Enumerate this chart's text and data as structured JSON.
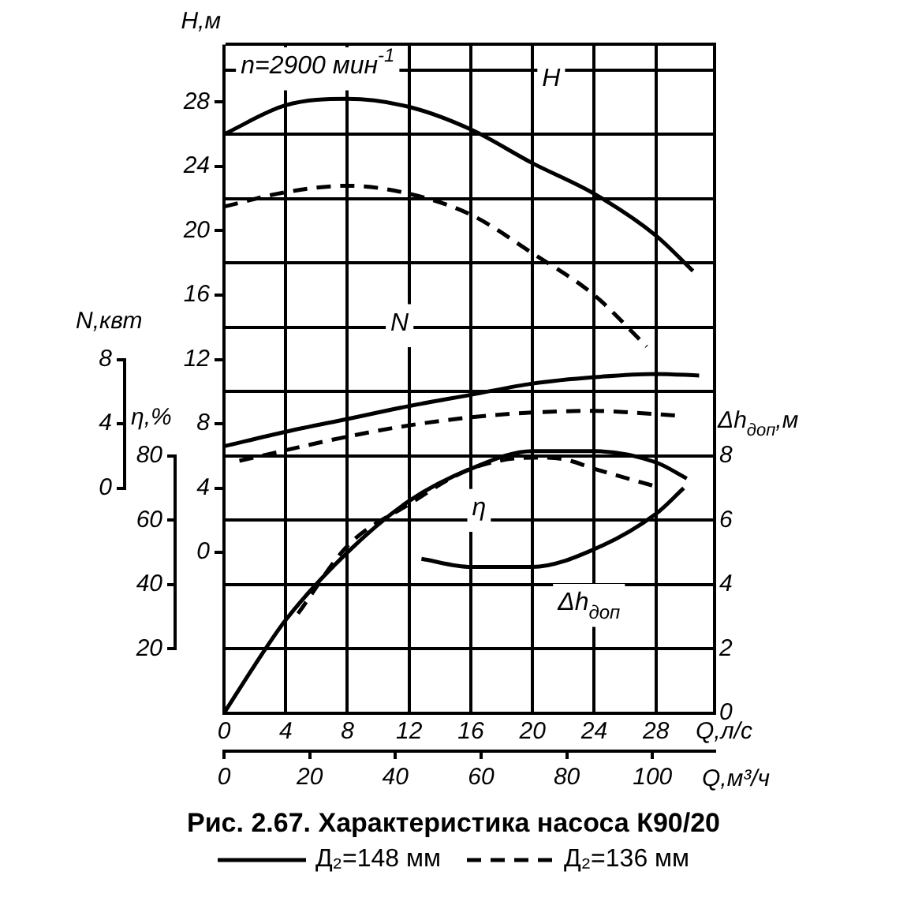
{
  "chart_data": [
    {
      "type": "line",
      "xlim": [
        0,
        31.8
      ],
      "ylabel": "H,м",
      "y2label": "N,квт",
      "ylim": [
        -10,
        31.6
      ],
      "yticks": [
        0,
        4,
        8,
        12,
        16,
        20,
        24,
        28
      ],
      "y2lim": [
        -14,
        27.6
      ],
      "y2ticks": [
        0,
        4,
        8
      ],
      "tick_labels": "y",
      "legend": "bottom",
      "marker": "none",
      "series": [
        {
          "name": "Д₂=148 мм",
          "color": "#000000",
          "line_style": "solid",
          "x": [
            0,
            4,
            8,
            12,
            16,
            20,
            24,
            28,
            30.4
          ],
          "values": [
            26,
            27.8,
            28.2,
            27.7,
            26.3,
            24.2,
            22.3,
            19.7,
            17.5
          ]
        },
        {
          "name": "Д₂=136 мм",
          "color": "#000000",
          "line_style": "dashed",
          "x": [
            0,
            4,
            8,
            12,
            16,
            20,
            24,
            27.4
          ],
          "values": [
            21.5,
            22.4,
            22.8,
            22.3,
            21,
            18.6,
            16,
            12.8
          ]
        },
        {
          "color": "#000000",
          "line_style": "solid",
          "axis": "y2",
          "x": [
            0,
            4,
            8,
            12,
            16,
            20,
            24,
            28,
            30.8
          ],
          "values": [
            2.6,
            3.5,
            4.3,
            5.1,
            5.8,
            6.5,
            6.9,
            7.1,
            7
          ]
        },
        {
          "color": "#000000",
          "line_style": "dashed",
          "axis": "y2",
          "x": [
            1,
            8,
            12,
            16,
            20,
            24,
            28,
            29.5
          ],
          "values": [
            1.7,
            3.2,
            3.9,
            4.4,
            4.7,
            4.8,
            4.6,
            4.5
          ]
        }
      ],
      "annotations": [
        "n=2900 мин$^{-1}$",
        "H",
        "N"
      ]
    },
    {
      "type": "line",
      "title": "Рис. 2.67. Характеристика насоса К90/20",
      "xlabel": "Q,л/с",
      "x2label": "Q,м³/ч",
      "ylabel": "η,%",
      "y2label": "Δh$_{доп}$,м",
      "xlim": [
        0,
        31.8
      ],
      "xticks": [
        0,
        4,
        8,
        12,
        16,
        20,
        24,
        28
      ],
      "x2lim": [
        0,
        114.5
      ],
      "x2ticks": [
        0,
        20,
        40,
        60,
        80,
        100
      ],
      "ylim": [
        0,
        208
      ],
      "yticks": [
        20,
        40,
        60,
        80
      ],
      "y2lim": [
        0,
        20.8
      ],
      "y2ticks": [
        0,
        2,
        4,
        6,
        8,
        {
          "value": 10,
          "label": null
        },
        {
          "value": 12,
          "label": null
        },
        {
          "value": 14,
          "label": null
        },
        {
          "value": 16,
          "label": null
        },
        {
          "value": 18,
          "label": null
        },
        {
          "value": 20,
          "label": null
        }
      ],
      "grid": true,
      "marker": "none",
      "series": [
        {
          "color": "#000000",
          "line_style": "solid",
          "x": [
            0,
            2,
            4,
            8,
            12,
            16,
            20,
            24,
            28,
            30
          ],
          "values": [
            0,
            15,
            29,
            50,
            66,
            76,
            81.5,
            81.5,
            78,
            73
          ]
        },
        {
          "color": "#000000",
          "line_style": "dashed",
          "x": [
            4.8,
            8,
            12,
            16,
            20,
            22,
            24,
            28
          ],
          "values": [
            31,
            52,
            65,
            76,
            79.5,
            79,
            76,
            70.5
          ]
        },
        {
          "color": "#000000",
          "line_style": "solid",
          "axis": "y2",
          "x": [
            12.8,
            16,
            20,
            24,
            28,
            29.8
          ],
          "values": [
            4.8,
            4.55,
            4.55,
            5.1,
            6.2,
            7
          ]
        }
      ],
      "annotations": [
        "η",
        "Δh$_{доп}$"
      ]
    }
  ]
}
